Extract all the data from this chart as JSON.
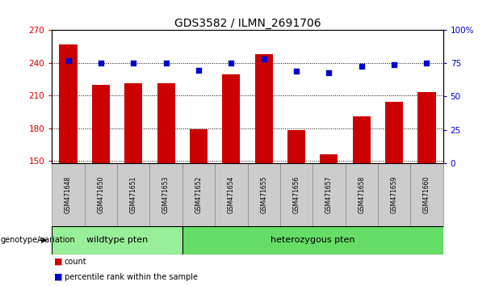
{
  "title": "GDS3582 / ILMN_2691706",
  "samples": [
    "GSM471648",
    "GSM471650",
    "GSM471651",
    "GSM471653",
    "GSM471652",
    "GSM471654",
    "GSM471655",
    "GSM471656",
    "GSM471657",
    "GSM471658",
    "GSM471659",
    "GSM471660"
  ],
  "counts": [
    257,
    220,
    221,
    221,
    179,
    229,
    248,
    178,
    156,
    191,
    204,
    213
  ],
  "percentile_ranks": [
    77,
    75,
    75,
    75,
    70,
    75,
    78,
    69,
    68,
    73,
    74,
    75
  ],
  "ylim_left": [
    148,
    270
  ],
  "ylim_right": [
    0,
    100
  ],
  "yticks_left": [
    150,
    180,
    210,
    240,
    270
  ],
  "yticks_right": [
    0,
    25,
    50,
    75,
    100
  ],
  "bar_color": "#cc0000",
  "dot_color": "#0000cc",
  "bar_width": 0.55,
  "wildtype_group": [
    "GSM471648",
    "GSM471650",
    "GSM471651",
    "GSM471653"
  ],
  "heterozygous_group": [
    "GSM471652",
    "GSM471654",
    "GSM471655",
    "GSM471656",
    "GSM471657",
    "GSM471658",
    "GSM471659",
    "GSM471660"
  ],
  "wildtype_label": "wildtype pten",
  "heterozygous_label": "heterozygous pten",
  "wildtype_color": "#99ee99",
  "heterozygous_color": "#66dd66",
  "sample_box_color": "#cccccc",
  "legend_count_label": "count",
  "legend_percentile_label": "percentile rank within the sample",
  "genotype_label": "genotype/variation",
  "left_axis_color": "#cc0000",
  "right_axis_color": "#0000cc",
  "background_color": "white",
  "title_fontsize": 10,
  "tick_fontsize": 7.5,
  "sample_fontsize": 5.5,
  "group_fontsize": 8,
  "legend_fontsize": 7,
  "genotype_fontsize": 7
}
